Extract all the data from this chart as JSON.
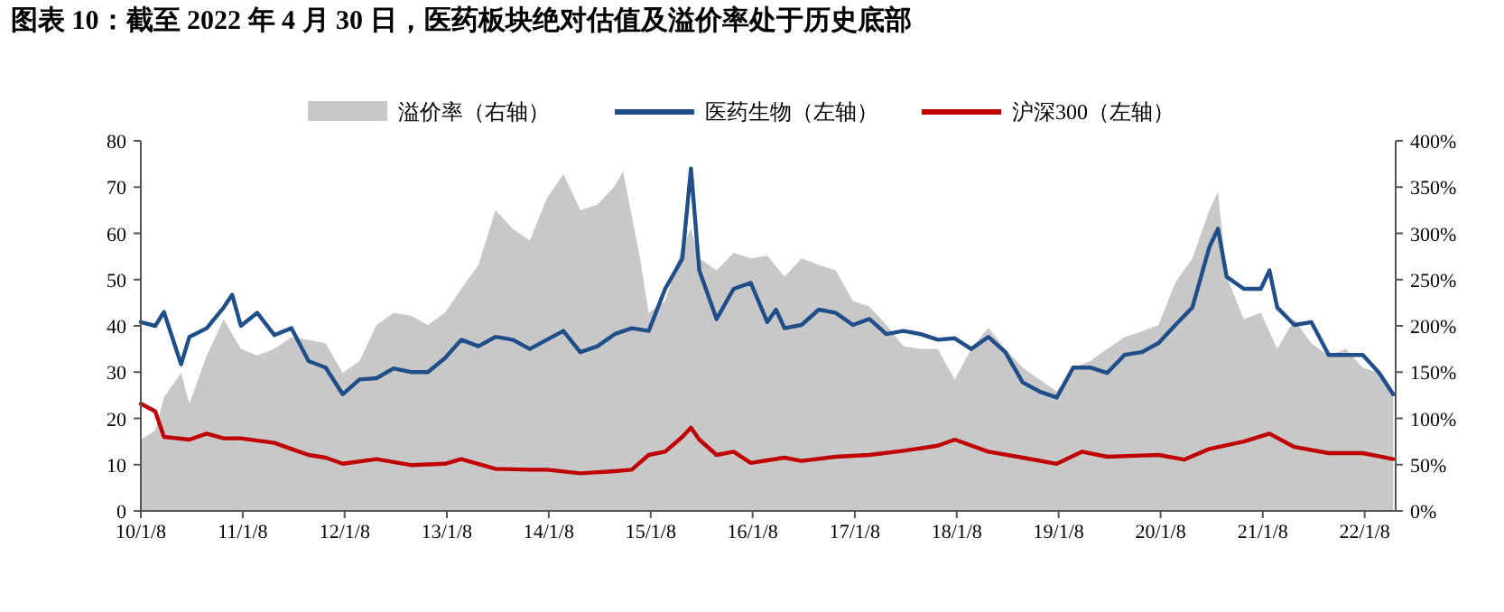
{
  "chart_data": {
    "type": "line",
    "title": "图表 10：截至 2022 年 4 月 30 日，医药板块绝对估值及溢价率处于历史底部",
    "legend": "top",
    "grid": false,
    "xlim": [
      "2010-01-08",
      "2022-04-29"
    ],
    "xticks": [
      {
        "value": "2010-01-08",
        "label": "10/1/8"
      },
      {
        "value": "2011-01-08",
        "label": "11/1/8"
      },
      {
        "value": "2012-01-08",
        "label": "12/1/8"
      },
      {
        "value": "2013-01-08",
        "label": "13/1/8"
      },
      {
        "value": "2014-01-08",
        "label": "14/1/8"
      },
      {
        "value": "2015-01-08",
        "label": "15/1/8"
      },
      {
        "value": "2016-01-08",
        "label": "16/1/8"
      },
      {
        "value": "2017-01-08",
        "label": "17/1/8"
      },
      {
        "value": "2018-01-08",
        "label": "18/1/8"
      },
      {
        "value": "2019-01-08",
        "label": "19/1/8"
      },
      {
        "value": "2020-01-08",
        "label": "20/1/8"
      },
      {
        "value": "2021-01-08",
        "label": "21/1/8"
      },
      {
        "value": "2022-01-08",
        "label": "22/1/8"
      }
    ],
    "ylim": [
      0,
      80
    ],
    "yticks": [
      0,
      10,
      20,
      30,
      40,
      50,
      60,
      70,
      80
    ],
    "y2lim": [
      0,
      400
    ],
    "y2ticks": [
      {
        "value": 0,
        "label": "0%"
      },
      {
        "value": 50,
        "label": "50%"
      },
      {
        "value": 100,
        "label": "100%"
      },
      {
        "value": 150,
        "label": "150%"
      },
      {
        "value": 200,
        "label": "200%"
      },
      {
        "value": 250,
        "label": "250%"
      },
      {
        "value": 300,
        "label": "300%"
      },
      {
        "value": 350,
        "label": "350%"
      },
      {
        "value": 400,
        "label": "400%"
      }
    ],
    "series": [
      {
        "name": "溢价率（右轴）",
        "type": "area",
        "axis": "y2",
        "color": "#c8c8c8",
        "x": [
          "2010-01-08",
          "2010-03",
          "2010-04",
          "2010-06",
          "2010-07",
          "2010-09",
          "2010-11",
          "2011-01",
          "2011-03",
          "2011-05",
          "2011-07",
          "2011-09",
          "2011-11",
          "2012-01",
          "2012-03",
          "2012-05",
          "2012-07",
          "2012-09",
          "2012-11",
          "2013-01",
          "2013-03",
          "2013-05",
          "2013-07",
          "2013-09",
          "2013-11",
          "2014-01",
          "2014-03",
          "2014-05",
          "2014-07",
          "2014-09",
          "2014-10",
          "2014-12",
          "2015-01",
          "2015-03",
          "2015-05",
          "2015-06",
          "2015-07",
          "2015-09",
          "2015-11",
          "2016-01",
          "2016-03",
          "2016-05",
          "2016-07",
          "2016-09",
          "2016-11",
          "2017-01",
          "2017-03",
          "2017-05",
          "2017-07",
          "2017-09",
          "2017-11",
          "2018-01",
          "2018-03",
          "2018-05",
          "2018-07",
          "2018-09",
          "2018-11",
          "2019-01",
          "2019-03",
          "2019-05",
          "2019-07",
          "2019-09",
          "2019-11",
          "2020-01",
          "2020-03",
          "2020-05",
          "2020-07",
          "2020-08",
          "2020-09",
          "2020-11",
          "2021-01",
          "2021-03",
          "2021-05",
          "2021-07",
          "2021-09",
          "2021-11",
          "2022-01",
          "2022-03",
          "2022-04-20"
        ],
        "values": [
          77,
          87,
          123,
          149,
          116,
          168,
          207,
          175,
          168,
          175,
          188,
          185,
          181,
          149,
          162,
          201,
          214,
          211,
          201,
          214,
          240,
          266,
          325,
          305,
          292,
          338,
          364,
          325,
          331,
          351,
          367,
          273,
          214,
          227,
          286,
          305,
          273,
          260,
          279,
          273,
          276,
          253,
          273,
          266,
          260,
          227,
          221,
          201,
          178,
          175,
          175,
          142,
          175,
          198,
          175,
          155,
          142,
          129,
          155,
          162,
          175,
          188,
          194,
          201,
          247,
          273,
          325,
          345,
          253,
          207,
          214,
          175,
          207,
          181,
          168,
          175,
          155,
          149,
          129
        ]
      },
      {
        "name": "医药生物（左轴）",
        "axis": "y",
        "color": "#1f4e89",
        "x": [
          "2010-01-08",
          "2010-03",
          "2010-04",
          "2010-06",
          "2010-07",
          "2010-09",
          "2010-11",
          "2010-12",
          "2011-01",
          "2011-03",
          "2011-05",
          "2011-07",
          "2011-09",
          "2011-11",
          "2012-01",
          "2012-03",
          "2012-05",
          "2012-07",
          "2012-09",
          "2012-11",
          "2013-01",
          "2013-03",
          "2013-05",
          "2013-07",
          "2013-09",
          "2013-11",
          "2014-01",
          "2014-03",
          "2014-05",
          "2014-07",
          "2014-09",
          "2014-11",
          "2015-01",
          "2015-03",
          "2015-05",
          "2015-06",
          "2015-07",
          "2015-09",
          "2015-11",
          "2016-01",
          "2016-03",
          "2016-04",
          "2016-05",
          "2016-07",
          "2016-09",
          "2016-11",
          "2017-01",
          "2017-03",
          "2017-05",
          "2017-07",
          "2017-09",
          "2017-11",
          "2018-01",
          "2018-03",
          "2018-05",
          "2018-07",
          "2018-09",
          "2018-11",
          "2019-01",
          "2019-03",
          "2019-05",
          "2019-07",
          "2019-09",
          "2019-11",
          "2020-01",
          "2020-03",
          "2020-05",
          "2020-07",
          "2020-08",
          "2020-09",
          "2020-11",
          "2021-01",
          "2021-02",
          "2021-03",
          "2021-05",
          "2021-07",
          "2021-09",
          "2021-11",
          "2022-01",
          "2022-03",
          "2022-04-20"
        ],
        "values": [
          40.8,
          40,
          43,
          31.7,
          37.6,
          39.5,
          44,
          46.7,
          40,
          42.8,
          38,
          39.5,
          32.4,
          31,
          25.2,
          28.4,
          28.7,
          30.8,
          30,
          30,
          33,
          37,
          35.6,
          37.6,
          37,
          35,
          37,
          38.9,
          34.3,
          35.6,
          38.2,
          39.5,
          38.9,
          48,
          54.5,
          74,
          52,
          41.5,
          48,
          49.3,
          40.8,
          43.5,
          39.5,
          40.2,
          43.5,
          42.8,
          40.2,
          41.5,
          38.2,
          38.9,
          38.2,
          37,
          37.3,
          35,
          37.6,
          34.3,
          27.8,
          25.8,
          24.5,
          31,
          31,
          29.8,
          33.7,
          34.3,
          36.3,
          40.2,
          44,
          57,
          61,
          50.6,
          48,
          48,
          52,
          44,
          40.2,
          40.8,
          33.7,
          33.7,
          33.7,
          29.8,
          25.2
        ]
      },
      {
        "name": "沪深300（左轴）",
        "axis": "y",
        "color": "#c00000",
        "x": [
          "2010-01-08",
          "2010-03",
          "2010-04",
          "2010-07",
          "2010-09",
          "2010-11",
          "2011-01",
          "2011-05",
          "2011-07",
          "2011-09",
          "2011-11",
          "2012-01",
          "2012-05",
          "2012-09",
          "2013-01",
          "2013-03",
          "2013-07",
          "2013-11",
          "2014-01",
          "2014-05",
          "2014-09",
          "2014-11",
          "2015-01",
          "2015-03",
          "2015-05",
          "2015-06",
          "2015-07",
          "2015-09",
          "2015-11",
          "2016-01",
          "2016-05",
          "2016-07",
          "2016-11",
          "2017-03",
          "2017-07",
          "2017-11",
          "2018-01",
          "2018-05",
          "2018-09",
          "2019-01",
          "2019-04",
          "2019-07",
          "2020-01",
          "2020-04",
          "2020-07",
          "2020-11",
          "2021-02",
          "2021-05",
          "2021-09",
          "2022-01",
          "2022-04-20"
        ],
        "values": [
          23.2,
          21.5,
          16,
          15.4,
          16.7,
          15.7,
          15.7,
          14.7,
          13.4,
          12.1,
          11.5,
          10.2,
          11.2,
          9.9,
          10.2,
          11.2,
          9.1,
          8.9,
          8.9,
          8.1,
          8.6,
          8.9,
          12.1,
          12.8,
          16,
          18,
          15.4,
          12.1,
          12.8,
          10.4,
          11.5,
          10.8,
          11.7,
          12.1,
          13,
          14.1,
          15.4,
          12.8,
          11.5,
          10.2,
          12.8,
          11.7,
          12.1,
          11.1,
          13.4,
          15,
          16.7,
          13.8,
          12.5,
          12.5,
          11.2
        ]
      }
    ]
  }
}
